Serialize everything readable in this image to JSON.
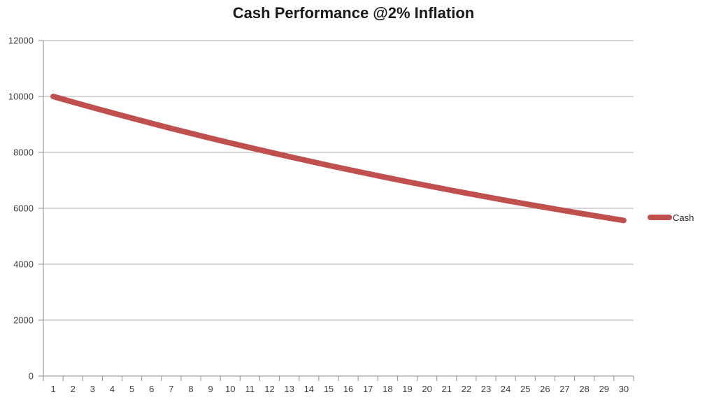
{
  "chart_data": {
    "type": "line",
    "title": "Cash Performance @2% Inflation",
    "xlabel": "",
    "ylabel": "",
    "x": [
      1,
      2,
      3,
      4,
      5,
      6,
      7,
      8,
      9,
      10,
      11,
      12,
      13,
      14,
      15,
      16,
      17,
      18,
      19,
      20,
      21,
      22,
      23,
      24,
      25,
      26,
      27,
      28,
      29,
      30
    ],
    "series": [
      {
        "name": "Cash",
        "color": "#C0504D",
        "values": [
          10000,
          9800,
          9604,
          9412,
          9224,
          9039,
          8858,
          8681,
          8508,
          8337,
          8171,
          8007,
          7847,
          7690,
          7536,
          7386,
          7238,
          7093,
          6951,
          6812,
          6676,
          6543,
          6412,
          6283,
          6158,
          6035,
          5914,
          5796,
          5680,
          5566
        ]
      }
    ],
    "ylim": [
      0,
      12000
    ],
    "yticks": [
      0,
      2000,
      4000,
      6000,
      8000,
      10000,
      12000
    ],
    "grid": "horizontal",
    "legend_position": "right-center",
    "notes": ""
  }
}
